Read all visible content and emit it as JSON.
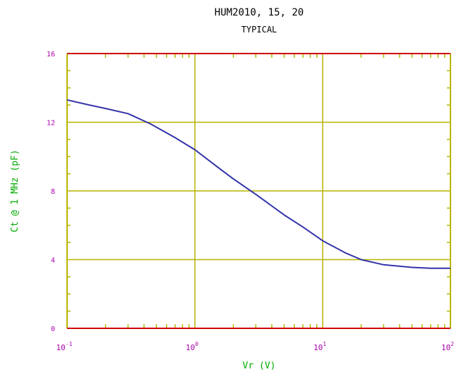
{
  "colors": {
    "frame": "#cc0000",
    "grid": "#b8b400",
    "curve": "#3333aa",
    "tick_label": "#aa00aa",
    "axis_label": "#00aa00",
    "title": "#000000"
  },
  "chart_data": {
    "type": "line",
    "title": "HUM2010, 15, 20",
    "subtitle": "TYPICAL",
    "xlabel": "Vr (V)",
    "ylabel": "Ct @ 1 MHz (pF)",
    "xscale": "log",
    "xlim": [
      0.1,
      100
    ],
    "ylim": [
      0,
      16
    ],
    "grid": true,
    "x_ticks": [
      {
        "base": "10",
        "exp": "-1",
        "value": 0.1
      },
      {
        "base": "10",
        "exp": "0",
        "value": 1
      },
      {
        "base": "10",
        "exp": "1",
        "value": 10
      },
      {
        "base": "10",
        "exp": "2",
        "value": 100
      }
    ],
    "y_ticks": [
      "0",
      "4",
      "8",
      "12",
      "16"
    ],
    "series": [
      {
        "x": [
          0.1,
          0.15,
          0.2,
          0.3,
          0.45,
          0.7,
          1.0,
          1.5,
          2.0,
          3.0,
          5.0,
          7.0,
          10,
          15,
          20,
          30,
          50,
          70,
          100
        ],
        "y": [
          13.3,
          13.0,
          12.8,
          12.5,
          11.9,
          11.1,
          10.4,
          9.4,
          8.7,
          7.8,
          6.6,
          5.9,
          5.1,
          4.4,
          4.0,
          3.7,
          3.55,
          3.5,
          3.5
        ]
      }
    ]
  }
}
